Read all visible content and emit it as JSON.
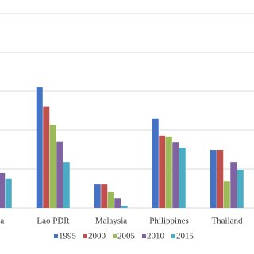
{
  "chart_data": {
    "type": "bar",
    "categories": [
      "nesia",
      "Lao PDR",
      "Malaysia",
      "Philippines",
      "Thailand"
    ],
    "series": [
      {
        "name": "1995",
        "color": "#4472c4",
        "values": [
          null,
          3.1,
          0.61,
          2.29,
          1.49
        ]
      },
      {
        "name": "2000",
        "color": "#c0504d",
        "values": [
          null,
          2.6,
          0.61,
          1.86,
          1.49
        ]
      },
      {
        "name": "2005",
        "color": "#9bbb59",
        "values": [
          1.12,
          2.14,
          0.41,
          1.84,
          0.69
        ]
      },
      {
        "name": "2010",
        "color": "#8064a2",
        "values": [
          0.9,
          1.7,
          0.24,
          1.69,
          1.18
        ]
      },
      {
        "name": "2015",
        "color": "#4bacc6",
        "values": [
          0.76,
          1.18,
          0.06,
          1.55,
          0.98
        ]
      }
    ],
    "ylim": [
      0,
      5
    ],
    "yticks": [
      0,
      1,
      2,
      3,
      4,
      5
    ],
    "grid": true,
    "legend": "bottom"
  }
}
